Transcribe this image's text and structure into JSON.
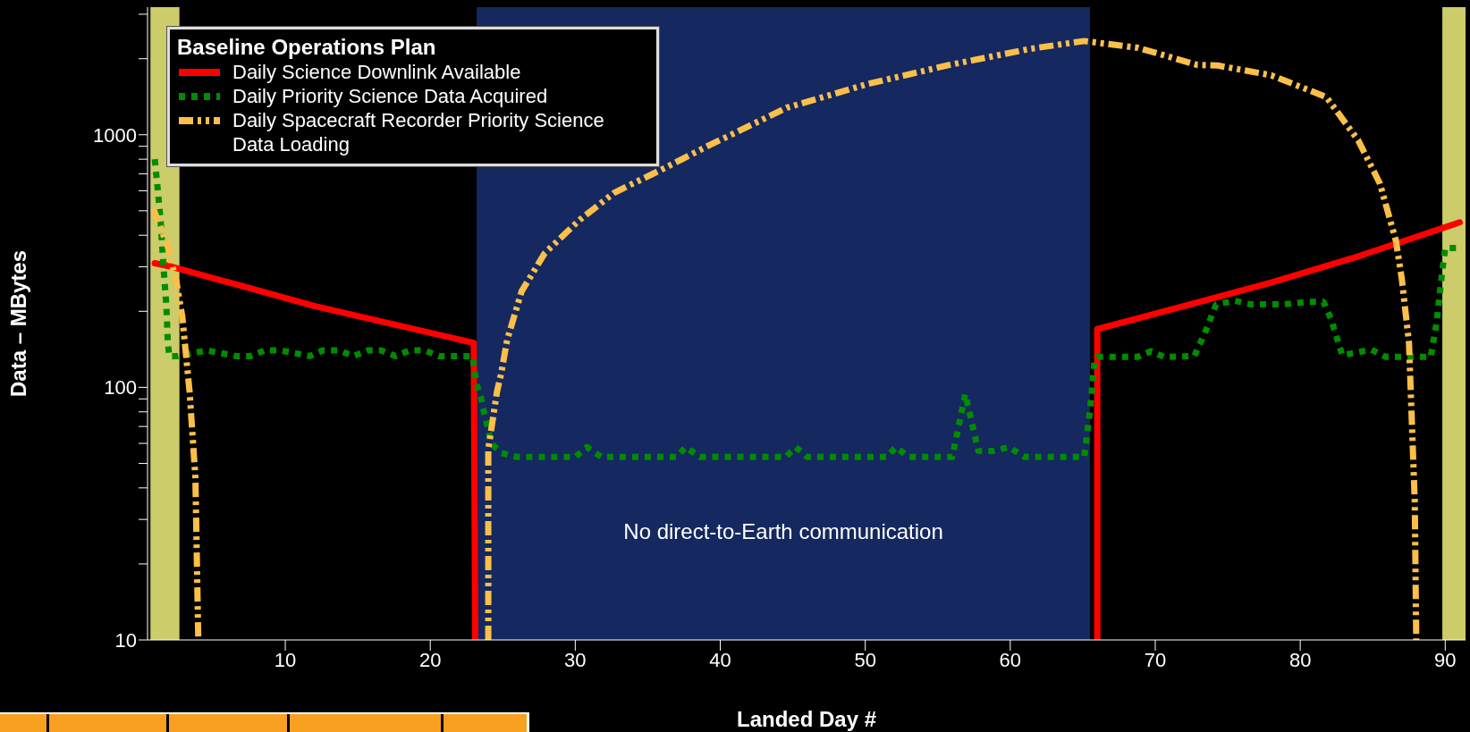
{
  "chart_data": {
    "type": "line",
    "xlabel": "Landed Day #",
    "ylabel": "Data – MBytes",
    "legend_title": "Baseline Operations Plan",
    "log": "y",
    "legend": "top left",
    "marker": "none",
    "xlim": [
      0.5,
      91.4
    ],
    "xticks": [
      10,
      20,
      30,
      40,
      50,
      60,
      70,
      80,
      90
    ],
    "ylim": [
      10,
      3200
    ],
    "yticks": [
      10,
      {
        "value": 20,
        "label": null
      },
      {
        "value": 30,
        "label": null
      },
      {
        "value": 40,
        "label": null
      },
      {
        "value": 50,
        "label": null
      },
      {
        "value": 60,
        "label": null
      },
      {
        "value": 70,
        "label": null
      },
      {
        "value": 80,
        "label": null
      },
      {
        "value": 90,
        "label": null
      },
      100,
      {
        "value": 200,
        "label": null
      },
      {
        "value": 300,
        "label": null
      },
      {
        "value": 400,
        "label": null
      },
      {
        "value": 500,
        "label": null
      },
      {
        "value": 600,
        "label": null
      },
      {
        "value": 700,
        "label": null
      },
      {
        "value": 800,
        "label": null
      },
      {
        "value": 900,
        "label": null
      },
      1000,
      {
        "value": 2000,
        "label": null
      },
      {
        "value": 3000,
        "label": null
      }
    ],
    "bands": [
      {
        "axis": "x",
        "from": 0.7,
        "to": 2.7,
        "color": "#cccc6a"
      },
      {
        "axis": "x",
        "from": 23.2,
        "to": 65.5,
        "color": "#15285f",
        "label": "No direct-to-Earth communication"
      },
      {
        "axis": "x",
        "from": 89.8,
        "to": 91.4,
        "color": "#cccc6a"
      }
    ],
    "series": [
      {
        "name": "Daily Science Downlink Available",
        "color": "#ff0000",
        "line_style": "solid",
        "x": [
          1,
          2.2,
          12,
          23,
          23.1,
          44,
          66,
          66,
          72,
          78,
          84,
          91
        ],
        "values": [
          310,
          300,
          210,
          150,
          10,
          null,
          10,
          170,
          210,
          260,
          330,
          450
        ]
      },
      {
        "name": "Daily Priority Science Data Acquired",
        "color": "#008c00",
        "line_style": "dotted",
        "x": [
          1,
          1.2,
          1.4,
          1.6,
          1.8,
          1.9,
          2,
          2.6,
          4.6,
          6.6,
          7.6,
          8.6,
          9.7,
          11.7,
          12.6,
          13.7,
          14.7,
          15.7,
          16.6,
          17.6,
          18.6,
          19.6,
          20.6,
          21.7,
          22.9,
          23.2,
          23.5,
          23.7,
          24,
          24.2,
          24.9,
          26,
          30,
          30.8,
          31.8,
          37,
          37.6,
          38.6,
          44.5,
          45.2,
          46,
          51.5,
          52.1,
          53,
          56,
          56.9,
          57.8,
          58.8,
          59.9,
          61,
          65.1,
          65.5,
          65.8,
          66,
          68.8,
          69.7,
          70.6,
          72.7,
          73.4,
          74.2,
          75.5,
          76.6,
          78.8,
          80.6,
          81.6,
          82.1,
          82.9,
          84.9,
          85.9,
          89,
          89.4,
          89.8,
          90,
          90.9
        ],
        "values": [
          800,
          610,
          460,
          300,
          210,
          150,
          133,
          133,
          140,
          133,
          133,
          140,
          140,
          133,
          140,
          140,
          133,
          140,
          140,
          133,
          140,
          140,
          133,
          133,
          133,
          103,
          91,
          80,
          68,
          60,
          55,
          53,
          53,
          58,
          53,
          53,
          58,
          53,
          53,
          58,
          53,
          53,
          58,
          53,
          53,
          94,
          56,
          56,
          58,
          53,
          53,
          81,
          126,
          132,
          132,
          139,
          132,
          133,
          163,
          213,
          220,
          213,
          213,
          218,
          218,
          188,
          134,
          141,
          132,
          132,
          180,
          290,
          356,
          356
        ]
      },
      {
        "name": "Daily Spacecraft Recorder Priority Science Data Loading",
        "color": "#fbbf4a",
        "line_style": "dashed",
        "x": [
          0.9,
          1.9,
          2.5,
          2.9,
          3.4,
          3.8,
          4,
          14,
          24,
          24,
          24.6,
          24.9,
          25.3,
          26.3,
          27.9,
          30.3,
          32.7,
          36.2,
          39.1,
          44.6,
          50.2,
          55.8,
          61.4,
          65.1,
          68.8,
          72.9,
          74.3,
          78,
          81.8,
          84,
          85.5,
          86.6,
          87,
          87.5,
          87.9,
          88
        ],
        "values": [
          510,
          360,
          260,
          190,
          96,
          44,
          10,
          null,
          10,
          57,
          96,
          114,
          154,
          240,
          340,
          460,
          590,
          740,
          900,
          1280,
          1590,
          1890,
          2190,
          2350,
          2210,
          1890,
          1880,
          1720,
          1410,
          950,
          640,
          380,
          270,
          150,
          35,
          10
        ]
      }
    ]
  }
}
